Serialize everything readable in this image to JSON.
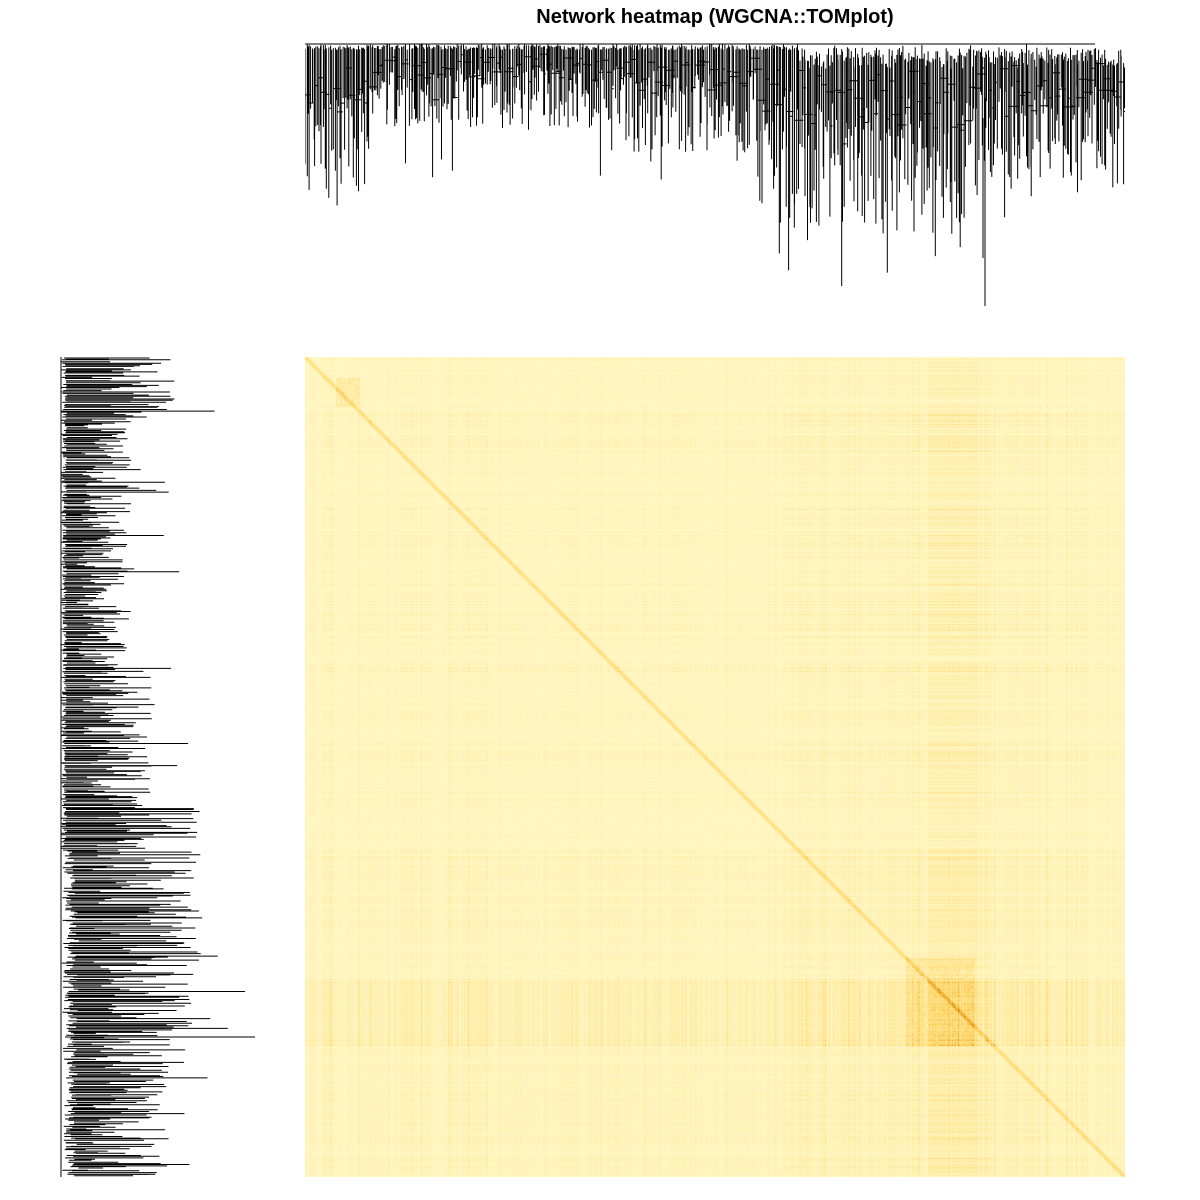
{
  "chart_data": {
    "type": "heatmap",
    "title": "Network heatmap (WGCNA::TOMplot)",
    "xlabel": "",
    "ylabel": "",
    "matrix": "gene-by-gene topological overlap (TOM), rows and columns ordered by hierarchical clustering",
    "color_scale": {
      "low": "#FFF7C4",
      "mid": "#FFD76A",
      "high": "#E08A00"
    },
    "dendrograms": [
      "top",
      "left"
    ],
    "dendrogram_color": "#000000",
    "grid": false,
    "legend": "none"
  }
}
